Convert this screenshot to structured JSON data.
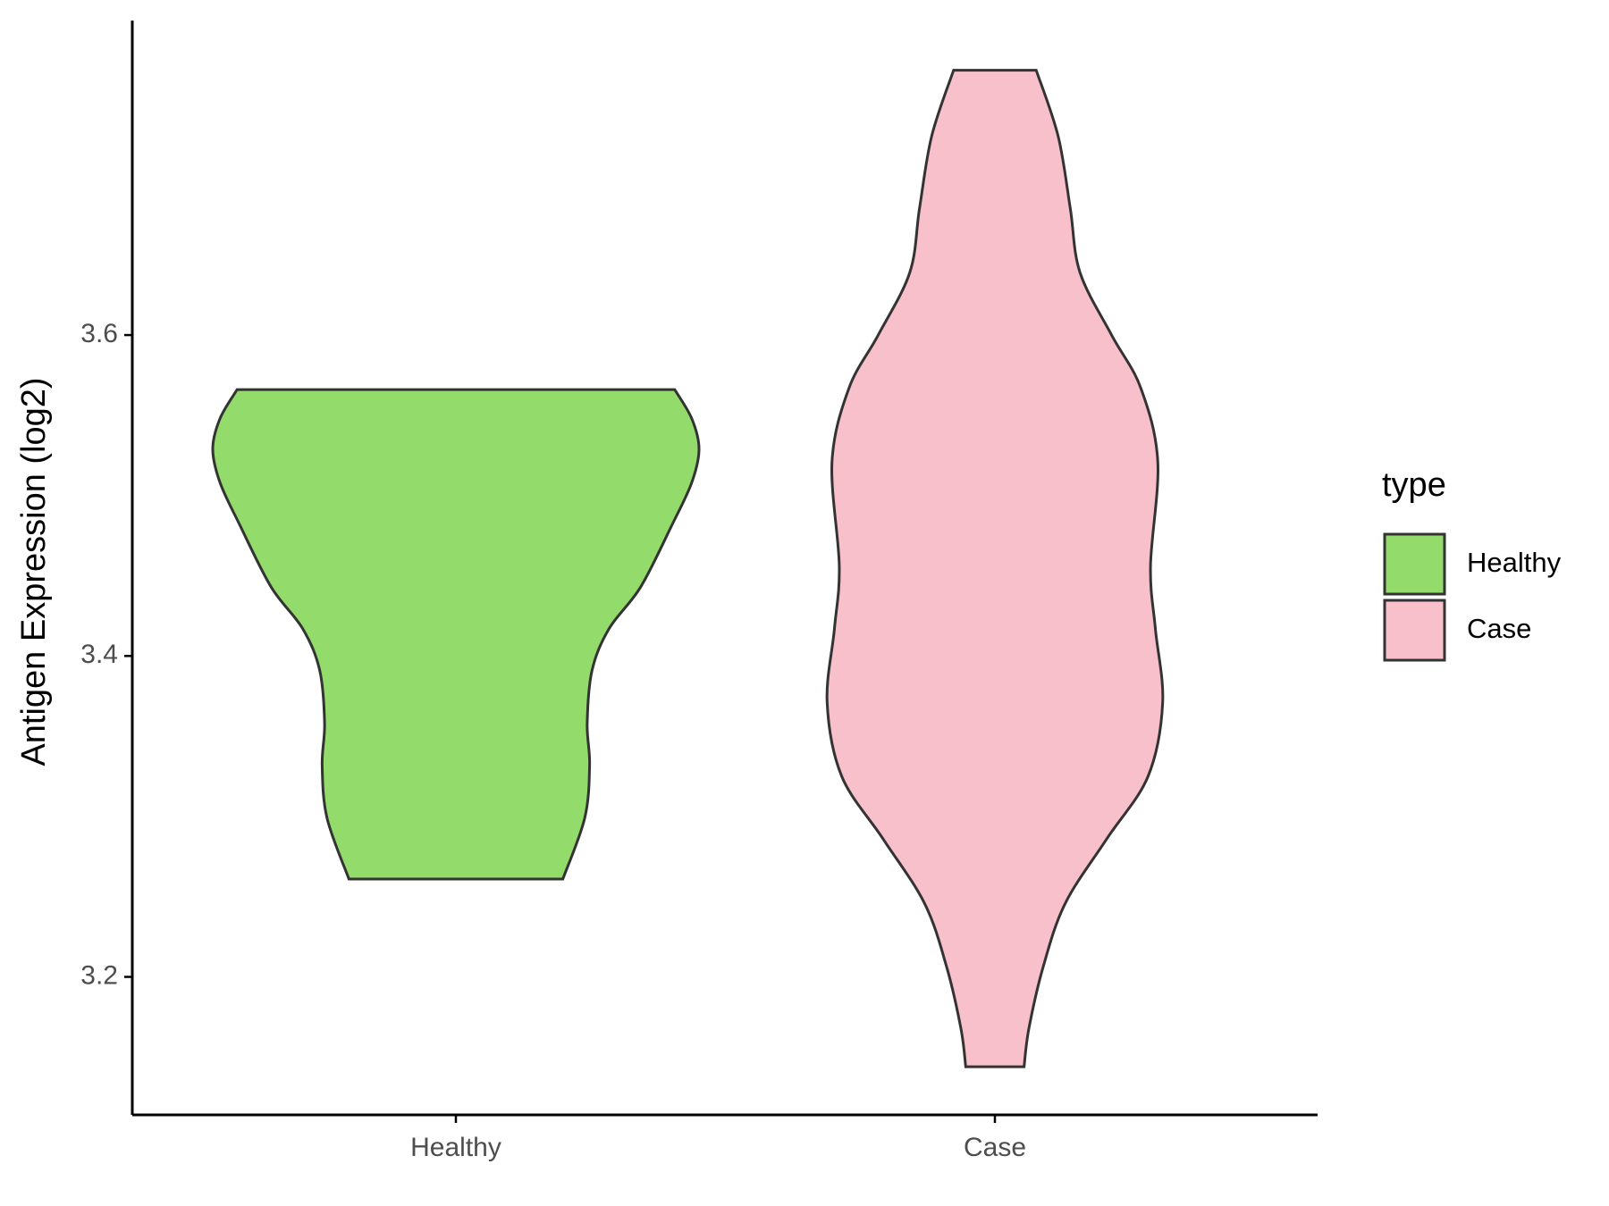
{
  "chart_data": {
    "type": "violin",
    "y_label": "Antigen Expression (log2)",
    "categories": [
      "Healthy",
      "Case"
    ],
    "legend_title": "type",
    "legend_position": "right",
    "ylim": [
      3.114,
      3.796
    ],
    "yticks": [
      3.2,
      3.4,
      3.6
    ],
    "series": [
      {
        "name": "Healthy",
        "color": "#93dc6b",
        "y": [
          3.261,
          3.299,
          3.332,
          3.358,
          3.391,
          3.417,
          3.443,
          3.482,
          3.508,
          3.529,
          3.548,
          3.566
        ],
        "density": [
          0.44,
          0.53,
          0.55,
          0.54,
          0.56,
          0.63,
          0.76,
          0.89,
          0.97,
          1.0,
          0.97,
          0.9
        ]
      },
      {
        "name": "Case",
        "color": "#f7c0cb",
        "y": [
          3.144,
          3.168,
          3.207,
          3.246,
          3.286,
          3.325,
          3.371,
          3.417,
          3.456,
          3.521,
          3.567,
          3.6,
          3.639,
          3.679,
          3.724,
          3.765
        ],
        "density": [
          0.12,
          0.14,
          0.2,
          0.29,
          0.46,
          0.63,
          0.69,
          0.66,
          0.64,
          0.67,
          0.6,
          0.48,
          0.35,
          0.31,
          0.26,
          0.17
        ]
      }
    ]
  }
}
